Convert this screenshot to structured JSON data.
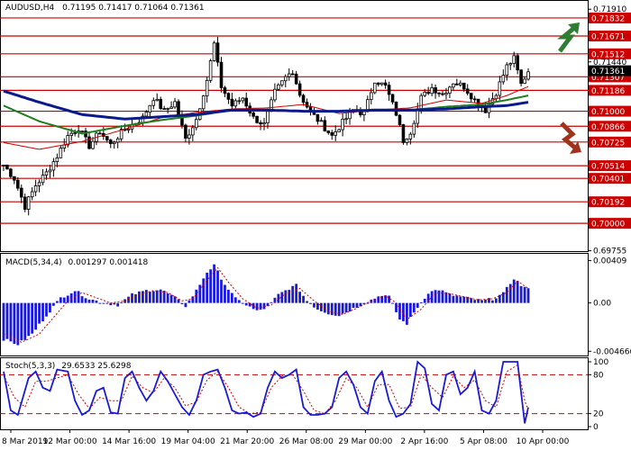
{
  "header": {
    "symbol": "AUDUSD,H4",
    "ohlc": "0.71195 0.71417 0.71064 0.71361"
  },
  "colors": {
    "background": "#ffffff",
    "frame": "#000000",
    "candle": "#000000",
    "level_line": "#cc0000",
    "level_label_bg": "#cc0000",
    "level_label_text": "#ffffff",
    "current_price_bg": "#000000",
    "ma_red": "#cc0000",
    "ma_green": "#1e7d1e",
    "ma_blue": "#0b1a8a",
    "macd_hist": "#1a1ad6",
    "macd_signal": "#cc0000",
    "stoch_main": "#1a1ad6",
    "stoch_signal": "#cc0000",
    "arrow_up": "#2e7d32",
    "arrow_down": "#a0331e"
  },
  "icons": {
    "up_arrow": "zigzag-up-arrow-icon",
    "down_arrow": "zigzag-down-arrow-icon"
  },
  "chart_data": [
    {
      "type": "candlestick",
      "title": "AUDUSD,H4",
      "ylim": [
        0.6976,
        0.7196
      ],
      "y_ticks": [
        "0.71910",
        "0.71440",
        "0.69755"
      ],
      "current_price": "0.71361",
      "levels": [
        "0.71832",
        "0.71671",
        "0.71512",
        "0.71307",
        "0.71186",
        "0.71000",
        "0.70866",
        "0.70725",
        "0.70514",
        "0.70401",
        "0.70192",
        "0.70000"
      ],
      "level_values": [
        0.71832,
        0.71671,
        0.71512,
        0.71307,
        0.71186,
        0.71,
        0.70866,
        0.70725,
        0.70514,
        0.70401,
        0.70192,
        0.7
      ],
      "x_labels": [
        "8 Mar 2019",
        "12 Mar 00:00",
        "14 Mar 16:00",
        "19 Mar 04:00",
        "21 Mar 20:00",
        "26 Mar 08:00",
        "29 Mar 00:00",
        "2 Apr 16:00",
        "5 Apr 08:00",
        "10 Apr 00:00"
      ],
      "candle_keypoints": [
        [
          0,
          0.7052
        ],
        [
          3,
          0.704
        ],
        [
          6,
          0.7015
        ],
        [
          9,
          0.7034
        ],
        [
          12,
          0.7045
        ],
        [
          15,
          0.706
        ],
        [
          18,
          0.7078
        ],
        [
          21,
          0.7085
        ],
        [
          24,
          0.7069
        ],
        [
          27,
          0.7082
        ],
        [
          30,
          0.707
        ],
        [
          33,
          0.7081
        ],
        [
          36,
          0.7088
        ],
        [
          39,
          0.7094
        ],
        [
          42,
          0.7112
        ],
        [
          45,
          0.71
        ],
        [
          48,
          0.7108
        ],
        [
          51,
          0.7075
        ],
        [
          54,
          0.7093
        ],
        [
          57,
          0.7128
        ],
        [
          59,
          0.716
        ],
        [
          61,
          0.7122
        ],
        [
          64,
          0.7105
        ],
        [
          67,
          0.7112
        ],
        [
          70,
          0.7094
        ],
        [
          73,
          0.7088
        ],
        [
          76,
          0.7117
        ],
        [
          79,
          0.713
        ],
        [
          81,
          0.7136
        ],
        [
          83,
          0.7115
        ],
        [
          86,
          0.7099
        ],
        [
          89,
          0.7089
        ],
        [
          92,
          0.7078
        ],
        [
          95,
          0.709
        ],
        [
          98,
          0.7101
        ],
        [
          101,
          0.7098
        ],
        [
          104,
          0.7128
        ],
        [
          107,
          0.7122
        ],
        [
          110,
          0.7098
        ],
        [
          112,
          0.7074
        ],
        [
          114,
          0.7082
        ],
        [
          117,
          0.7112
        ],
        [
          120,
          0.7121
        ],
        [
          123,
          0.7115
        ],
        [
          126,
          0.7126
        ],
        [
          129,
          0.7122
        ],
        [
          132,
          0.711
        ],
        [
          135,
          0.7101
        ],
        [
          138,
          0.7117
        ],
        [
          141,
          0.714
        ],
        [
          143,
          0.7147
        ],
        [
          145,
          0.7124
        ],
        [
          147,
          0.7136
        ]
      ],
      "ma_red": [
        [
          0,
          0.7072
        ],
        [
          10,
          0.7066
        ],
        [
          22,
          0.7073
        ],
        [
          34,
          0.7084
        ],
        [
          44,
          0.7094
        ],
        [
          54,
          0.7099
        ],
        [
          64,
          0.7102
        ],
        [
          74,
          0.7103
        ],
        [
          84,
          0.7106
        ],
        [
          94,
          0.7098
        ],
        [
          104,
          0.7101
        ],
        [
          114,
          0.7103
        ],
        [
          124,
          0.711
        ],
        [
          134,
          0.7107
        ],
        [
          141,
          0.7114
        ],
        [
          147,
          0.7122
        ]
      ],
      "ma_green": [
        [
          0,
          0.7105
        ],
        [
          10,
          0.7091
        ],
        [
          22,
          0.708
        ],
        [
          34,
          0.7087
        ],
        [
          44,
          0.7092
        ],
        [
          54,
          0.7096
        ],
        [
          64,
          0.7101
        ],
        [
          74,
          0.7101
        ],
        [
          84,
          0.71
        ],
        [
          94,
          0.71
        ],
        [
          104,
          0.7101
        ],
        [
          114,
          0.7101
        ],
        [
          124,
          0.7104
        ],
        [
          134,
          0.7106
        ],
        [
          141,
          0.711
        ],
        [
          147,
          0.7114
        ]
      ],
      "ma_blue": [
        [
          0,
          0.7118
        ],
        [
          10,
          0.7108
        ],
        [
          22,
          0.7097
        ],
        [
          34,
          0.7093
        ],
        [
          44,
          0.7095
        ],
        [
          54,
          0.7097
        ],
        [
          64,
          0.7101
        ],
        [
          74,
          0.7101
        ],
        [
          84,
          0.71
        ],
        [
          94,
          0.71
        ],
        [
          104,
          0.7101
        ],
        [
          114,
          0.7101
        ],
        [
          124,
          0.7102
        ],
        [
          134,
          0.7104
        ],
        [
          141,
          0.7105
        ],
        [
          147,
          0.7108
        ]
      ]
    },
    {
      "type": "bar",
      "title": "MACD(5,34,4)",
      "values_label": "0.001297 0.001418",
      "ylim": [
        -0.0049,
        0.0044
      ],
      "y_ticks": [
        "0.00409",
        "0.00",
        "-0.004666"
      ],
      "hist_keypoints": [
        [
          0,
          -0.0035
        ],
        [
          4,
          -0.004
        ],
        [
          8,
          -0.003
        ],
        [
          12,
          -0.0012
        ],
        [
          16,
          0.0005
        ],
        [
          20,
          0.0012
        ],
        [
          24,
          0.0004
        ],
        [
          28,
          0.0
        ],
        [
          32,
          -0.0002
        ],
        [
          36,
          0.0008
        ],
        [
          40,
          0.0012
        ],
        [
          44,
          0.0013
        ],
        [
          48,
          0.0005
        ],
        [
          51,
          -0.0003
        ],
        [
          54,
          0.0012
        ],
        [
          57,
          0.003
        ],
        [
          59,
          0.0036
        ],
        [
          62,
          0.0018
        ],
        [
          65,
          0.0004
        ],
        [
          68,
          -0.0002
        ],
        [
          71,
          -0.0008
        ],
        [
          74,
          -0.0004
        ],
        [
          77,
          0.0008
        ],
        [
          80,
          0.0014
        ],
        [
          82,
          0.0017
        ],
        [
          85,
          0.0002
        ],
        [
          88,
          -0.0006
        ],
        [
          91,
          -0.001
        ],
        [
          94,
          -0.0012
        ],
        [
          97,
          -0.0007
        ],
        [
          100,
          -0.0002
        ],
        [
          103,
          0.0003
        ],
        [
          106,
          0.0008
        ],
        [
          108,
          0.0006
        ],
        [
          111,
          -0.0016
        ],
        [
          113,
          -0.002
        ],
        [
          116,
          -0.0004
        ],
        [
          119,
          0.001
        ],
        [
          122,
          0.0013
        ],
        [
          125,
          0.0008
        ],
        [
          128,
          0.0006
        ],
        [
          131,
          0.0004
        ],
        [
          134,
          0.0002
        ],
        [
          137,
          0.0004
        ],
        [
          140,
          0.0009
        ],
        [
          143,
          0.0024
        ],
        [
          145,
          0.0017
        ],
        [
          147,
          0.0013
        ]
      ],
      "signal_keypoints": [
        [
          0,
          -0.003
        ],
        [
          5,
          -0.0038
        ],
        [
          10,
          -0.003
        ],
        [
          14,
          -0.0014
        ],
        [
          18,
          0.0002
        ],
        [
          22,
          0.001
        ],
        [
          26,
          0.0005
        ],
        [
          30,
          0.0
        ],
        [
          34,
          0.0002
        ],
        [
          38,
          0.0008
        ],
        [
          42,
          0.0012
        ],
        [
          46,
          0.001
        ],
        [
          50,
          0.0002
        ],
        [
          53,
          0.0004
        ],
        [
          57,
          0.0022
        ],
        [
          60,
          0.0034
        ],
        [
          63,
          0.002
        ],
        [
          67,
          0.0004
        ],
        [
          71,
          -0.0005
        ],
        [
          75,
          -0.0002
        ],
        [
          79,
          0.0009
        ],
        [
          83,
          0.0014
        ],
        [
          87,
          0.0002
        ],
        [
          91,
          -0.0008
        ],
        [
          95,
          -0.0011
        ],
        [
          99,
          -0.0005
        ],
        [
          103,
          0.0002
        ],
        [
          107,
          0.0007
        ],
        [
          110,
          0.0
        ],
        [
          113,
          -0.0016
        ],
        [
          117,
          -0.0006
        ],
        [
          121,
          0.001
        ],
        [
          125,
          0.0009
        ],
        [
          129,
          0.0006
        ],
        [
          133,
          0.0003
        ],
        [
          137,
          0.0004
        ],
        [
          141,
          0.001
        ],
        [
          144,
          0.0021
        ],
        [
          147,
          0.0014
        ]
      ]
    },
    {
      "type": "line",
      "title": "Stoch(5,3,3)",
      "values_label": "29.6533 25.6298",
      "ylim": [
        0,
        100
      ],
      "y_ticks": [
        "100",
        "80",
        "20",
        "0"
      ],
      "bands": [
        80,
        20
      ],
      "main_keypoints": [
        [
          0,
          85
        ],
        [
          2,
          25
        ],
        [
          4,
          18
        ],
        [
          7,
          75
        ],
        [
          9,
          85
        ],
        [
          11,
          60
        ],
        [
          13,
          55
        ],
        [
          15,
          88
        ],
        [
          18,
          85
        ],
        [
          20,
          40
        ],
        [
          22,
          18
        ],
        [
          24,
          25
        ],
        [
          26,
          55
        ],
        [
          28,
          60
        ],
        [
          30,
          22
        ],
        [
          32,
          20
        ],
        [
          34,
          75
        ],
        [
          36,
          85
        ],
        [
          38,
          60
        ],
        [
          40,
          40
        ],
        [
          42,
          55
        ],
        [
          44,
          85
        ],
        [
          46,
          70
        ],
        [
          48,
          50
        ],
        [
          50,
          30
        ],
        [
          52,
          18
        ],
        [
          54,
          40
        ],
        [
          56,
          80
        ],
        [
          58,
          85
        ],
        [
          60,
          88
        ],
        [
          62,
          60
        ],
        [
          64,
          25
        ],
        [
          66,
          20
        ],
        [
          68,
          22
        ],
        [
          70,
          15
        ],
        [
          72,
          20
        ],
        [
          74,
          60
        ],
        [
          76,
          85
        ],
        [
          78,
          75
        ],
        [
          80,
          80
        ],
        [
          82,
          88
        ],
        [
          84,
          30
        ],
        [
          86,
          18
        ],
        [
          88,
          18
        ],
        [
          90,
          20
        ],
        [
          92,
          30
        ],
        [
          94,
          75
        ],
        [
          96,
          85
        ],
        [
          98,
          65
        ],
        [
          100,
          30
        ],
        [
          102,
          20
        ],
        [
          104,
          70
        ],
        [
          106,
          85
        ],
        [
          108,
          40
        ],
        [
          110,
          15
        ],
        [
          112,
          20
        ],
        [
          114,
          35
        ],
        [
          116,
          100
        ],
        [
          118,
          90
        ],
        [
          120,
          35
        ],
        [
          122,
          25
        ],
        [
          124,
          80
        ],
        [
          126,
          85
        ],
        [
          128,
          50
        ],
        [
          130,
          60
        ],
        [
          132,
          85
        ],
        [
          134,
          25
        ],
        [
          136,
          20
        ],
        [
          138,
          40
        ],
        [
          140,
          100
        ],
        [
          142,
          100
        ],
        [
          144,
          100
        ],
        [
          146,
          5
        ],
        [
          147,
          29.65
        ]
      ],
      "signal_keypoints": [
        [
          0,
          80
        ],
        [
          3,
          45
        ],
        [
          6,
          30
        ],
        [
          9,
          70
        ],
        [
          12,
          70
        ],
        [
          15,
          75
        ],
        [
          18,
          80
        ],
        [
          21,
          50
        ],
        [
          24,
          28
        ],
        [
          27,
          45
        ],
        [
          30,
          40
        ],
        [
          33,
          40
        ],
        [
          36,
          78
        ],
        [
          39,
          60
        ],
        [
          42,
          52
        ],
        [
          45,
          75
        ],
        [
          48,
          60
        ],
        [
          51,
          32
        ],
        [
          54,
          38
        ],
        [
          57,
          72
        ],
        [
          60,
          85
        ],
        [
          63,
          60
        ],
        [
          66,
          30
        ],
        [
          69,
          20
        ],
        [
          72,
          22
        ],
        [
          75,
          60
        ],
        [
          78,
          78
        ],
        [
          81,
          80
        ],
        [
          84,
          55
        ],
        [
          87,
          25
        ],
        [
          90,
          20
        ],
        [
          93,
          40
        ],
        [
          96,
          75
        ],
        [
          99,
          60
        ],
        [
          102,
          30
        ],
        [
          105,
          65
        ],
        [
          108,
          65
        ],
        [
          111,
          28
        ],
        [
          114,
          30
        ],
        [
          117,
          80
        ],
        [
          120,
          60
        ],
        [
          123,
          45
        ],
        [
          126,
          78
        ],
        [
          129,
          60
        ],
        [
          132,
          72
        ],
        [
          135,
          40
        ],
        [
          138,
          30
        ],
        [
          141,
          85
        ],
        [
          144,
          95
        ],
        [
          146,
          40
        ],
        [
          147,
          25.63
        ]
      ]
    }
  ]
}
